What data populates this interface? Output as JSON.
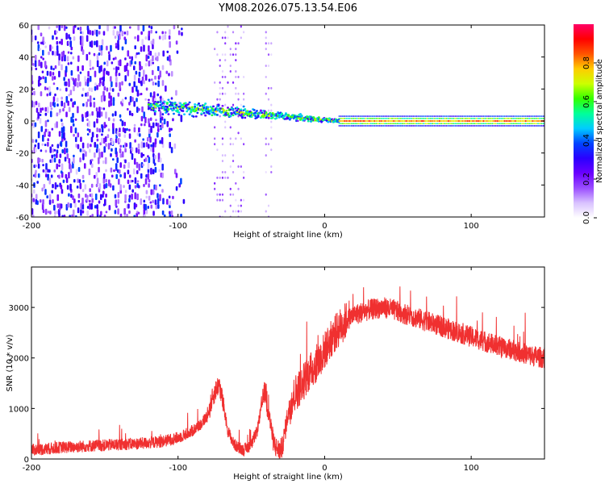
{
  "chart_data": [
    {
      "type": "heatmap",
      "title": "YM08.2026.075.13.54.E06",
      "xlabel": "Height of straight line (km)",
      "ylabel": "Frequency (Hz)",
      "xlim": [
        -200,
        150
      ],
      "ylim": [
        -60,
        60
      ],
      "xticks": [
        -200,
        -100,
        0,
        100
      ],
      "yticks": [
        -60,
        -40,
        -20,
        0,
        20,
        40,
        60
      ],
      "colorbar": {
        "label": "Normalized spectral amplitude",
        "range": [
          0,
          1
        ],
        "ticks": [
          0.0,
          0.2,
          0.4,
          0.6,
          0.8
        ],
        "colormap": [
          "#ffffff",
          "#d9c2ff",
          "#9a4dff",
          "#6a00ff",
          "#2b00ff",
          "#0044ff",
          "#00ccff",
          "#00ff99",
          "#33ff00",
          "#ccff00",
          "#ffcc00",
          "#ff5500",
          "#ff0000",
          "#ff0066"
        ]
      },
      "features": [
        {
          "name": "diffuse noise",
          "x_range": [
            -200,
            -95
          ],
          "y_range": [
            -60,
            60
          ],
          "amplitude": 0.15
        },
        {
          "name": "noise stripe",
          "x_range": [
            -75,
            -55
          ],
          "y_range": [
            -60,
            60
          ],
          "amplitude": 0.08
        },
        {
          "name": "noise stripe",
          "x_range": [
            -40,
            -35
          ],
          "y_range": [
            -60,
            60
          ],
          "amplitude": 0.06
        },
        {
          "name": "drifting trace",
          "x_start": -120,
          "x_end": 10,
          "freq_start": 10,
          "freq_end": 0,
          "amplitude": 0.55
        },
        {
          "name": "steady carrier",
          "x_range": [
            10,
            150
          ],
          "freq": 0,
          "amplitude": 0.9
        }
      ]
    },
    {
      "type": "line",
      "xlabel": "Height of straight line (km)",
      "ylabel": "SNR (10 * v/v)",
      "xlim": [
        -200,
        150
      ],
      "ylim": [
        0,
        3800
      ],
      "xticks": [
        -200,
        -100,
        0,
        100
      ],
      "yticks": [
        0,
        1000,
        2000,
        3000
      ],
      "series": [
        {
          "name": "SNR",
          "color": "#f03030",
          "x": [
            -200,
            -190,
            -180,
            -170,
            -160,
            -150,
            -140,
            -130,
            -120,
            -110,
            -100,
            -90,
            -85,
            -80,
            -76,
            -72,
            -70,
            -66,
            -62,
            -58,
            -55,
            -50,
            -46,
            -43,
            -41,
            -39,
            -37,
            -35,
            -33,
            -31,
            -29,
            -27,
            -25,
            -22,
            -19,
            -16,
            -12,
            -8,
            -4,
            0,
            5,
            10,
            15,
            20,
            25,
            30,
            35,
            40,
            45,
            50,
            60,
            70,
            80,
            90,
            100,
            110,
            120,
            130,
            140,
            150
          ],
          "values": [
            180,
            200,
            230,
            240,
            260,
            270,
            290,
            300,
            320,
            350,
            420,
            560,
            680,
            850,
            1250,
            1500,
            1200,
            560,
            300,
            200,
            180,
            280,
            560,
            1050,
            1350,
            1150,
            700,
            350,
            220,
            180,
            220,
            550,
            900,
            1200,
            1350,
            1450,
            1650,
            1800,
            1950,
            2150,
            2400,
            2600,
            2750,
            2850,
            2900,
            2950,
            2980,
            3000,
            2970,
            2920,
            2820,
            2720,
            2620,
            2520,
            2420,
            2320,
            2220,
            2150,
            2050,
            2000
          ],
          "noise_amplitude": 300
        }
      ]
    }
  ]
}
